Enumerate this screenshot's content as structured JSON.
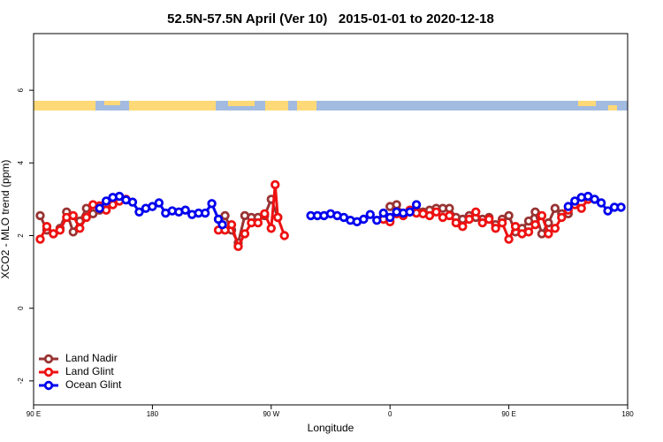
{
  "chart_data": {
    "type": "line",
    "title": "52.5N-57.5N April (Ver 10)   2015-01-01 to 2020-12-18",
    "x_label": "Longitude",
    "y_label": "XCO2 - MLO trend (ppm)",
    "xlim": [
      90,
      540
    ],
    "ylim": [
      -2.66,
      7.56
    ],
    "xticks": [
      {
        "value": 90,
        "label": "90 E"
      },
      180,
      {
        "value": 270,
        "label": "90 W"
      },
      {
        "value": 360,
        "label": "0"
      },
      {
        "value": 450,
        "label": "90 E"
      },
      {
        "value": 540,
        "label": "180"
      }
    ],
    "yticks": [
      -2,
      0,
      2,
      4,
      6
    ],
    "legend": "bottom-left",
    "series": [
      {
        "name": "Land Nadir",
        "color": "#993333",
        "x": [
          95,
          100,
          105,
          110,
          115,
          120,
          125,
          130,
          135,
          140,
          145,
          null,
          230,
          235,
          240,
          245,
          250,
          255,
          260,
          265,
          270,
          275,
          null,
          360,
          365,
          370,
          375,
          380,
          385,
          390,
          395,
          400,
          405,
          410,
          415,
          420,
          425,
          430,
          435,
          440,
          445,
          450,
          455,
          460,
          465,
          470,
          475,
          480,
          485,
          490,
          495
        ],
        "values": [
          2.55,
          2.15,
          2.05,
          2.2,
          2.65,
          2.1,
          2.4,
          2.75,
          2.6,
          2.7,
          2.85,
          null,
          2.45,
          2.55,
          2.15,
          1.8,
          2.55,
          2.5,
          2.5,
          2.55,
          3.0,
          2.5,
          null,
          2.8,
          2.85,
          2.6,
          2.65,
          2.7,
          2.65,
          2.7,
          2.75,
          2.75,
          2.75,
          2.5,
          2.45,
          2.55,
          2.5,
          2.45,
          2.5,
          2.3,
          2.45,
          2.55,
          2.1,
          2.2,
          2.4,
          2.65,
          2.05,
          2.35,
          2.75,
          2.6,
          2.6
        ]
      },
      {
        "name": "Land Glint",
        "color": "#ee1111",
        "x": [
          95,
          100,
          105,
          110,
          115,
          120,
          125,
          130,
          135,
          140,
          145,
          150,
          155,
          160,
          null,
          230,
          235,
          240,
          245,
          250,
          255,
          260,
          265,
          270,
          273,
          275,
          280,
          null,
          355,
          360,
          365,
          370,
          375,
          380,
          385,
          390,
          395,
          400,
          405,
          410,
          415,
          420,
          425,
          430,
          435,
          440,
          445,
          450,
          455,
          460,
          465,
          470,
          475,
          480,
          485,
          490,
          495,
          500,
          505,
          510
        ],
        "values": [
          1.9,
          2.25,
          2.05,
          2.15,
          2.5,
          2.55,
          2.2,
          2.5,
          2.85,
          2.82,
          2.7,
          2.85,
          2.95,
          3.0,
          null,
          2.15,
          2.15,
          2.3,
          1.7,
          2.05,
          2.35,
          2.35,
          2.6,
          2.2,
          3.4,
          2.5,
          2.0,
          null,
          2.45,
          2.38,
          2.6,
          2.55,
          2.7,
          2.62,
          2.6,
          2.55,
          2.65,
          2.5,
          2.55,
          2.35,
          2.25,
          2.45,
          2.65,
          2.35,
          2.45,
          2.2,
          2.35,
          1.9,
          2.25,
          2.05,
          2.1,
          2.3,
          2.55,
          2.05,
          2.2,
          2.5,
          2.7,
          2.85,
          2.75,
          3.0
        ]
      },
      {
        "name": "Ocean Glint",
        "color": "#0000ee",
        "x": [
          140,
          145,
          150,
          155,
          160,
          165,
          170,
          175,
          180,
          185,
          190,
          195,
          200,
          205,
          210,
          215,
          220,
          225,
          230,
          233,
          null,
          300,
          305,
          310,
          315,
          320,
          325,
          330,
          335,
          340,
          345,
          350,
          355,
          360,
          365,
          370,
          375,
          380,
          null,
          495,
          500,
          505,
          510,
          515,
          520,
          525,
          530,
          535
        ],
        "values": [
          2.75,
          2.95,
          3.05,
          3.08,
          2.98,
          2.92,
          2.65,
          2.75,
          2.8,
          2.9,
          2.62,
          2.68,
          2.65,
          2.7,
          2.58,
          2.62,
          2.62,
          2.88,
          2.45,
          2.3,
          null,
          2.55,
          2.55,
          2.55,
          2.6,
          2.55,
          2.5,
          2.42,
          2.38,
          2.45,
          2.58,
          2.42,
          2.62,
          2.5,
          2.65,
          2.62,
          2.65,
          2.85,
          null,
          2.8,
          2.95,
          3.05,
          3.08,
          3.0,
          2.9,
          2.68,
          2.78,
          2.78
        ]
      }
    ]
  }
}
